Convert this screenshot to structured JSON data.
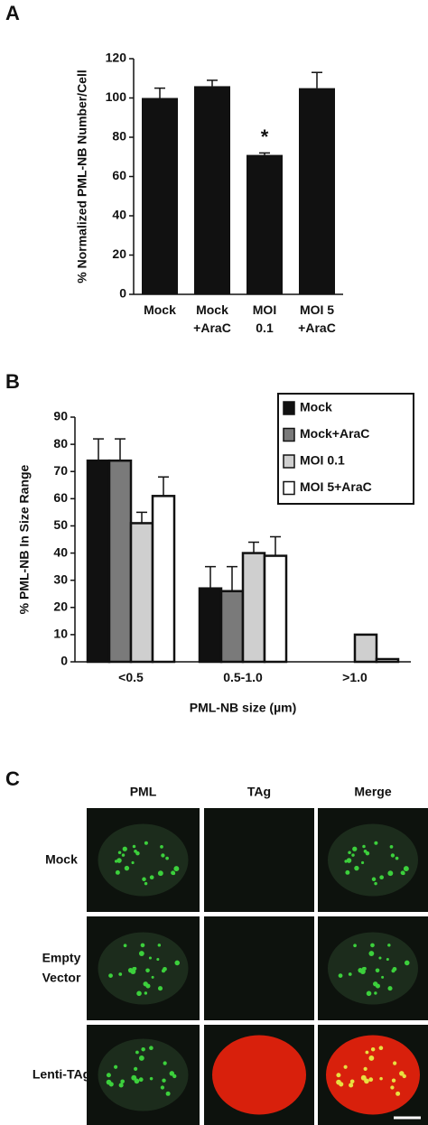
{
  "chart_data": [
    {
      "type": "bar",
      "panel": "A",
      "y_label": "% Normalized PML-NB Number/Cell",
      "categories": [
        [
          "Mock"
        ],
        [
          "Mock",
          "+AraC"
        ],
        [
          "MOI",
          "0.1"
        ],
        [
          "MOI 5",
          "+AraC"
        ]
      ],
      "values": [
        100,
        106,
        71,
        105
      ],
      "errors": [
        5,
        3,
        1,
        8
      ],
      "color": "#111111",
      "annotation": "*",
      "ylim": [
        0,
        120
      ],
      "yticks": [
        0,
        20,
        40,
        60,
        80,
        100,
        120
      ]
    },
    {
      "type": "bar",
      "panel": "B",
      "y_label": "% PML-NB In Size Range",
      "x_label": "PML-NB size (µm)",
      "categories": [
        [
          "<0.5"
        ],
        [
          "0.5-1.0"
        ],
        [
          ">1.0"
        ]
      ],
      "series": [
        {
          "name": "Mock",
          "color": "#111111",
          "values": [
            74,
            27,
            0
          ],
          "errors": [
            8,
            8,
            0
          ]
        },
        {
          "name": "Mock+AraC",
          "color": "#7a7a7a",
          "values": [
            74,
            26,
            0
          ],
          "errors": [
            8,
            9,
            0
          ]
        },
        {
          "name": "MOI 0.1",
          "color": "#cfcfcf",
          "values": [
            51,
            40,
            10
          ],
          "errors": [
            4,
            4,
            0
          ]
        },
        {
          "name": "MOI 5+AraC",
          "color": "#ffffff",
          "values": [
            61,
            39,
            1
          ],
          "errors": [
            7,
            7,
            0
          ]
        }
      ],
      "legend": "top-right",
      "ylim": [
        0,
        90
      ],
      "yticks": [
        0,
        10,
        20,
        30,
        40,
        50,
        60,
        70,
        80,
        90
      ]
    }
  ],
  "panel_c": {
    "panel": "C",
    "columns": [
      "PML",
      "TAg",
      "Merge"
    ],
    "rows": [
      [
        "Mock"
      ],
      [
        "Empty",
        "Vector"
      ],
      [
        "Lenti-TAg"
      ]
    ]
  }
}
